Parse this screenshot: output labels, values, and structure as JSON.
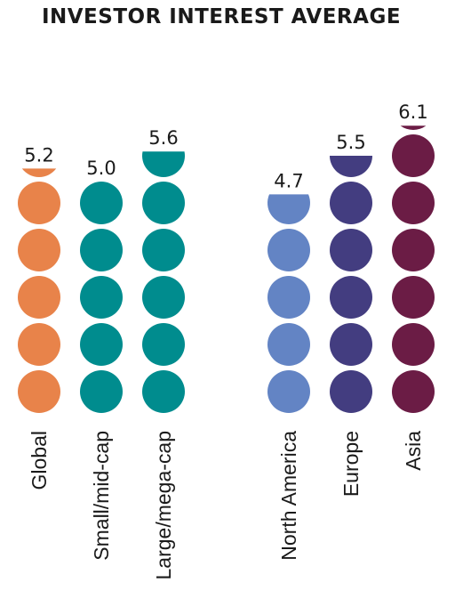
{
  "title": "INVESTOR INTEREST AVERAGE",
  "chart_data": {
    "type": "bar",
    "style": "dot-stack",
    "title": "INVESTOR INTEREST AVERAGE",
    "categories": [
      "Global",
      "Small/mid-cap",
      "Large/mega-cap",
      "North America",
      "Europe",
      "Asia"
    ],
    "values": [
      5.2,
      5.0,
      5.6,
      4.7,
      5.5,
      6.1
    ],
    "value_labels": [
      "5.2",
      "5.0",
      "5.6",
      "4.7",
      "5.5",
      "6.1"
    ],
    "colors": [
      "#E8834A",
      "#008C8E",
      "#008C8E",
      "#6384C4",
      "#433D80",
      "#6B1C45"
    ],
    "units_per_dot": 1,
    "grid": false,
    "legend": "none"
  }
}
